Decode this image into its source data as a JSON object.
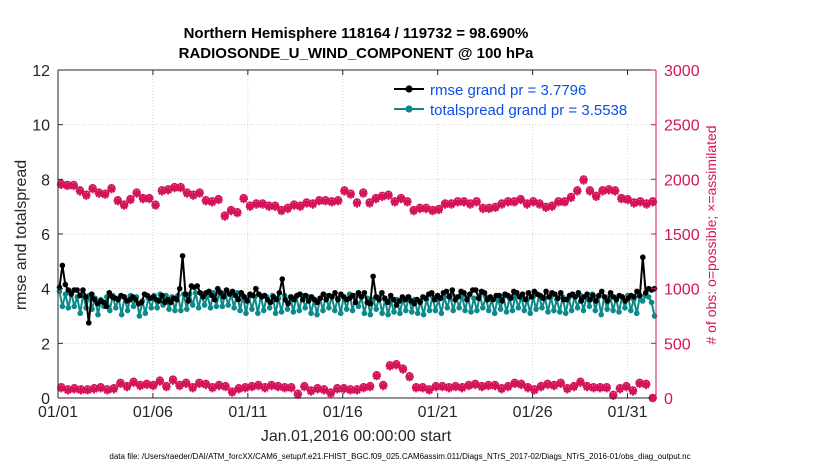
{
  "chart_data": {
    "type": "line",
    "title_line1": "Northern Hemisphere 118164 / 119732 = 98.690%",
    "title_line2": "RADIOSONDE_U_WIND_COMPONENT @ 100 hPa",
    "xlabel": "Jan.01,2016 00:00:00 start",
    "ylabel": "rmse and totalspread",
    "ylabel_right": "# of obs: o=possible; ×=assimilated",
    "footer": "data file: /Users/raeder/DAI/ATM_forcXX/CAM6_setup/f.e21.FHIST_BGC.f09_025.CAM6assim.011/Diags_NTrS_2017-02/Diags_NTrS_2016-01/obs_diag_output.nc",
    "x_range_days": [
      0,
      31.5
    ],
    "ylim": [
      0,
      12
    ],
    "ylim_right": [
      0,
      3000
    ],
    "x_ticks": [
      {
        "day": 0,
        "label": "01/01"
      },
      {
        "day": 5,
        "label": "01/06"
      },
      {
        "day": 10,
        "label": "01/11"
      },
      {
        "day": 15,
        "label": "01/16"
      },
      {
        "day": 20,
        "label": "01/21"
      },
      {
        "day": 25,
        "label": "01/26"
      },
      {
        "day": 30,
        "label": "01/31"
      }
    ],
    "y_ticks": [
      "0",
      "2",
      "4",
      "6",
      "8",
      "10",
      "12"
    ],
    "y_ticks_right": [
      "0",
      "500",
      "1000",
      "1500",
      "2000",
      "2500",
      "3000"
    ],
    "colors": {
      "rmse": "#000000",
      "spread": "#0c8a8a",
      "obs": "#d4145a",
      "right_axis": "#d4145a",
      "legend_text": "#0a50e6"
    },
    "series": [
      {
        "name": "rmse grand pr = 3.7796",
        "key": "rmse",
        "values": [
          4.05,
          4.85,
          4.15,
          3.95,
          3.8,
          3.95,
          3.95,
          3.75,
          3.95,
          3.7,
          2.75,
          3.8,
          3.6,
          3.45,
          3.55,
          3.5,
          3.35,
          3.85,
          3.7,
          3.65,
          3.6,
          3.75,
          3.7,
          3.55,
          3.6,
          3.7,
          3.6,
          3.45,
          3.5,
          3.8,
          3.75,
          3.65,
          3.7,
          3.6,
          3.55,
          3.75,
          3.5,
          3.6,
          3.5,
          3.65,
          3.6,
          4.0,
          5.2,
          3.8,
          3.55,
          4.1,
          4.05,
          4.1,
          3.85,
          3.7,
          3.85,
          3.9,
          3.75,
          3.6,
          4.0,
          3.85,
          3.7,
          3.95,
          3.8,
          3.9,
          3.75,
          3.6,
          3.85,
          3.7,
          3.55,
          3.8,
          3.75,
          4.0,
          3.8,
          3.7,
          3.75,
          3.6,
          3.5,
          3.7,
          3.6,
          3.85,
          4.35,
          3.6,
          3.45,
          3.7,
          3.6,
          3.75,
          3.8,
          3.6,
          3.75,
          3.55,
          3.7,
          3.6,
          3.5,
          3.65,
          3.8,
          3.6,
          3.75,
          3.7,
          3.85,
          3.6,
          3.8,
          3.7,
          3.6,
          3.65,
          3.75,
          3.5,
          3.85,
          3.7,
          3.85,
          3.5,
          3.45,
          4.45,
          3.7,
          3.6,
          3.85,
          3.65,
          3.5,
          3.75,
          3.6,
          3.4,
          3.55,
          3.7,
          3.6,
          3.7,
          3.55,
          3.45,
          3.6,
          3.5,
          3.7,
          3.65,
          3.8,
          3.85,
          3.6,
          3.75,
          3.65,
          3.85,
          3.9,
          3.7,
          3.95,
          3.6,
          3.7,
          3.9,
          3.85,
          3.6,
          3.8,
          3.95,
          3.95,
          3.65,
          3.9,
          3.85,
          3.6,
          3.7,
          3.6,
          3.75,
          3.75,
          3.55,
          3.8,
          3.75,
          3.65,
          3.9,
          3.85,
          3.7,
          3.8,
          3.6,
          3.85,
          3.7,
          3.9,
          3.8,
          3.75,
          3.65,
          3.9,
          3.7,
          3.85,
          3.8,
          3.65,
          3.85,
          3.6,
          3.6,
          3.75,
          3.8,
          3.7,
          3.85,
          3.55,
          3.7,
          3.8,
          3.6,
          3.75,
          3.55,
          3.75,
          3.9,
          3.7,
          3.55,
          3.85,
          3.7,
          3.6,
          3.75,
          3.7,
          3.55,
          3.65,
          3.75,
          3.7,
          3.9,
          3.75,
          5.15,
          3.85,
          4.0,
          3.95,
          4.0
        ]
      },
      {
        "name": "totalspread grand pr = 3.5538",
        "key": "spread",
        "values": [
          3.9,
          3.35,
          3.8,
          3.3,
          3.85,
          3.35,
          3.7,
          3.1,
          3.8,
          3.3,
          3.75,
          3.25,
          3.65,
          3.05,
          3.6,
          3.35,
          3.7,
          3.2,
          3.75,
          3.3,
          3.65,
          3.05,
          3.7,
          3.2,
          3.75,
          3.35,
          3.7,
          3.0,
          3.55,
          3.1,
          3.65,
          3.3,
          3.75,
          3.3,
          3.8,
          3.4,
          3.75,
          3.25,
          3.7,
          3.2,
          3.75,
          3.2,
          3.8,
          3.25,
          3.8,
          3.4,
          3.85,
          3.3,
          3.8,
          3.4,
          3.75,
          3.3,
          3.85,
          3.35,
          3.9,
          3.35,
          3.85,
          3.4,
          3.8,
          3.3,
          3.85,
          3.2,
          3.75,
          3.1,
          3.7,
          3.25,
          3.7,
          3.1,
          3.75,
          3.2,
          3.7,
          3.3,
          3.75,
          3.1,
          3.65,
          3.15,
          3.75,
          3.25,
          3.7,
          3.15,
          3.7,
          3.2,
          3.75,
          3.3,
          3.7,
          3.1,
          3.6,
          3.05,
          3.65,
          3.2,
          3.75,
          3.3,
          3.7,
          3.2,
          3.65,
          3.1,
          3.7,
          3.25,
          3.8,
          3.2,
          3.75,
          3.35,
          3.7,
          3.1,
          3.65,
          3.05,
          3.6,
          3.25,
          3.7,
          3.1,
          3.6,
          3.05,
          3.55,
          3.15,
          3.6,
          3.1,
          3.65,
          3.2,
          3.7,
          3.15,
          3.6,
          3.1,
          3.55,
          3.05,
          3.6,
          3.2,
          3.7,
          3.2,
          3.6,
          3.1,
          3.7,
          3.3,
          3.75,
          3.2,
          3.7,
          3.3,
          3.75,
          3.2,
          3.7,
          3.15,
          3.65,
          3.2,
          3.75,
          3.3,
          3.7,
          3.2,
          3.6,
          3.1,
          3.65,
          3.25,
          3.7,
          3.15,
          3.65,
          3.2,
          3.75,
          3.3,
          3.7,
          3.2,
          3.6,
          3.1,
          3.7,
          3.25,
          3.75,
          3.3,
          3.65,
          3.15,
          3.7,
          3.2,
          3.6,
          3.15,
          3.7,
          3.1,
          3.65,
          3.2,
          3.7,
          3.3,
          3.75,
          3.2,
          3.7,
          3.35,
          3.8,
          3.2,
          3.7,
          3.05,
          3.7,
          3.25,
          3.75,
          3.2,
          3.65,
          3.15,
          3.7,
          3.3,
          3.75,
          3.2,
          3.6,
          3.1,
          3.7,
          3.55,
          3.75,
          3.7,
          3.5,
          3.0
        ]
      }
    ],
    "obs_possible": [
      1960,
      1950,
      1950,
      1900,
      1860,
      1920,
      1880,
      1870,
      1920,
      1810,
      1770,
      1820,
      1880,
      1830,
      1830,
      1770,
      1900,
      1910,
      1930,
      1930,
      1880,
      1860,
      1880,
      1810,
      1800,
      1820,
      1670,
      1720,
      1700,
      1830,
      1760,
      1780,
      1780,
      1760,
      1760,
      1720,
      1740,
      1770,
      1760,
      1790,
      1780,
      1810,
      1810,
      1800,
      1810,
      1900,
      1870,
      1790,
      1880,
      1790,
      1830,
      1850,
      1860,
      1800,
      1830,
      1800,
      1720,
      1740,
      1740,
      1720,
      1730,
      1780,
      1780,
      1800,
      1800,
      1780,
      1800,
      1740,
      1740,
      1750,
      1780,
      1800,
      1800,
      1820,
      1780,
      1800,
      1780,
      1750,
      1760,
      1800,
      1800,
      1840,
      1900,
      2000,
      1900,
      1850,
      1900,
      1910,
      1900,
      1830,
      1820,
      1790,
      1800,
      1780,
      1800
    ],
    "obs_assimilated": [
      1950,
      1940,
      1940,
      1890,
      1850,
      1910,
      1870,
      1860,
      1910,
      1800,
      1760,
      1810,
      1870,
      1820,
      1820,
      1760,
      1890,
      1900,
      1920,
      1920,
      1870,
      1850,
      1870,
      1800,
      1790,
      1810,
      1660,
      1710,
      1690,
      1820,
      1750,
      1770,
      1770,
      1750,
      1750,
      1710,
      1730,
      1760,
      1750,
      1780,
      1770,
      1800,
      1800,
      1790,
      1800,
      1890,
      1860,
      1780,
      1870,
      1780,
      1820,
      1840,
      1850,
      1790,
      1820,
      1790,
      1710,
      1730,
      1730,
      1710,
      1720,
      1770,
      1770,
      1790,
      1790,
      1770,
      1790,
      1730,
      1730,
      1740,
      1770,
      1790,
      1790,
      1810,
      1770,
      1790,
      1770,
      1740,
      1750,
      1790,
      1790,
      1830,
      1890,
      1990,
      1890,
      1840,
      1890,
      1900,
      1890,
      1820,
      1810,
      1780,
      1790,
      1770,
      1790
    ],
    "obs_low_possible": [
      100,
      80,
      90,
      80,
      80,
      90,
      100,
      80,
      90,
      140,
      110,
      150,
      120,
      130,
      120,
      160,
      110,
      170,
      120,
      140,
      100,
      140,
      130,
      100,
      120,
      110,
      60,
      90,
      100,
      110,
      120,
      100,
      120,
      110,
      100,
      100,
      40,
      110,
      70,
      90,
      80,
      50,
      90,
      90,
      80,
      80,
      100,
      110,
      210,
      120,
      300,
      310,
      270,
      200,
      100,
      100,
      80,
      110,
      110,
      100,
      110,
      100,
      120,
      130,
      110,
      120,
      120,
      90,
      110,
      140,
      130,
      100,
      80,
      110,
      130,
      120,
      140,
      90,
      110,
      150,
      110,
      100,
      100,
      100,
      30,
      90,
      110,
      70,
      140,
      130,
      0
    ],
    "obs_low_assimilated": [
      90,
      70,
      80,
      70,
      70,
      80,
      90,
      70,
      80,
      130,
      100,
      140,
      110,
      120,
      110,
      150,
      100,
      160,
      110,
      130,
      90,
      130,
      120,
      90,
      110,
      100,
      50,
      80,
      90,
      100,
      110,
      90,
      110,
      100,
      90,
      90,
      30,
      100,
      60,
      80,
      70,
      40,
      80,
      80,
      70,
      70,
      90,
      100,
      200,
      110,
      290,
      300,
      260,
      190,
      90,
      90,
      70,
      100,
      100,
      90,
      100,
      90,
      110,
      120,
      100,
      110,
      110,
      80,
      100,
      130,
      120,
      90,
      70,
      100,
      120,
      110,
      130,
      80,
      100,
      140,
      100,
      90,
      90,
      90,
      20,
      80,
      100,
      60,
      130,
      120,
      0
    ]
  },
  "legend": [
    {
      "label": "rmse grand pr = 3.7796",
      "key": "rmse"
    },
    {
      "label": "totalspread grand pr = 3.5538",
      "key": "spread"
    }
  ]
}
